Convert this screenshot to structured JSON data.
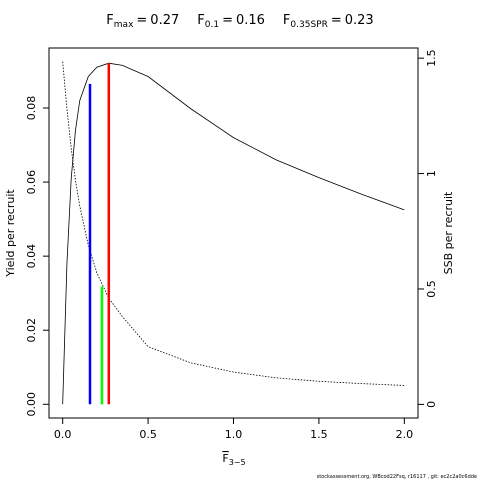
{
  "chart_data": {
    "type": "line",
    "title_items": [
      {
        "symbol": "F",
        "sub": "max",
        "relation": "=",
        "value": 0.27
      },
      {
        "symbol": "F",
        "sub": "0.1",
        "relation": "=",
        "value": 0.16
      },
      {
        "symbol": "F",
        "sub": "0.35SPR",
        "relation": "=",
        "value": 0.23
      }
    ],
    "xlabel": {
      "symbol": "F",
      "sub": "3−5"
    },
    "ylabel": "Yield per recruit",
    "y2label": "SSB per recruit",
    "footer": "stockassessment.org, WBcod22Fsq, r16117 , git: ec2c2a0c6dde",
    "x": [
      0,
      0.025,
      0.05,
      0.075,
      0.1,
      0.15,
      0.2,
      0.27,
      0.35,
      0.5,
      0.75,
      1,
      1.25,
      1.5,
      1.75,
      2
    ],
    "series": [
      {
        "name": "Yield per recruit",
        "color": "#000000",
        "dash": "solid",
        "axis": "y",
        "values": [
          0,
          0.038,
          0.061,
          0.074,
          0.082,
          0.0885,
          0.091,
          0.0921,
          0.0915,
          0.0885,
          0.0798,
          0.072,
          0.066,
          0.0612,
          0.0567,
          0.0525
        ]
      },
      {
        "name": "SSB per recruit",
        "color": "#000000",
        "dash": "dotted",
        "axis": "y2",
        "values": [
          1.485,
          1.28,
          1.11,
          0.97,
          0.86,
          0.69,
          0.57,
          0.46,
          0.38,
          0.25,
          0.18,
          0.14,
          0.115,
          0.1,
          0.09,
          0.082
        ]
      }
    ],
    "reference_lines": [
      {
        "x": 0.27,
        "top": 0.0921,
        "axis": "y",
        "color": "#ff0000"
      },
      {
        "x": 0.16,
        "top": 0.0865,
        "axis": "y",
        "color": "#0000ff"
      },
      {
        "x": 0.23,
        "top": 0.51,
        "axis": "y2",
        "color": "#00ff00"
      }
    ],
    "xlim": [
      -0.08,
      2.08
    ],
    "xticks": [
      {
        "value": 0,
        "label": "0.0"
      },
      0.5,
      {
        "value": 1,
        "label": "1.0"
      },
      1.5,
      {
        "value": 2,
        "label": "2.0"
      }
    ],
    "ylim": [
      -0.0037,
      0.0962
    ],
    "yticks": [
      {
        "value": 0,
        "label": "0.00"
      },
      0.02,
      0.04,
      0.06,
      0.08
    ],
    "y2lim": [
      -0.059,
      1.544
    ],
    "y2ticks": [
      0,
      0.5,
      1,
      1.5
    ]
  }
}
